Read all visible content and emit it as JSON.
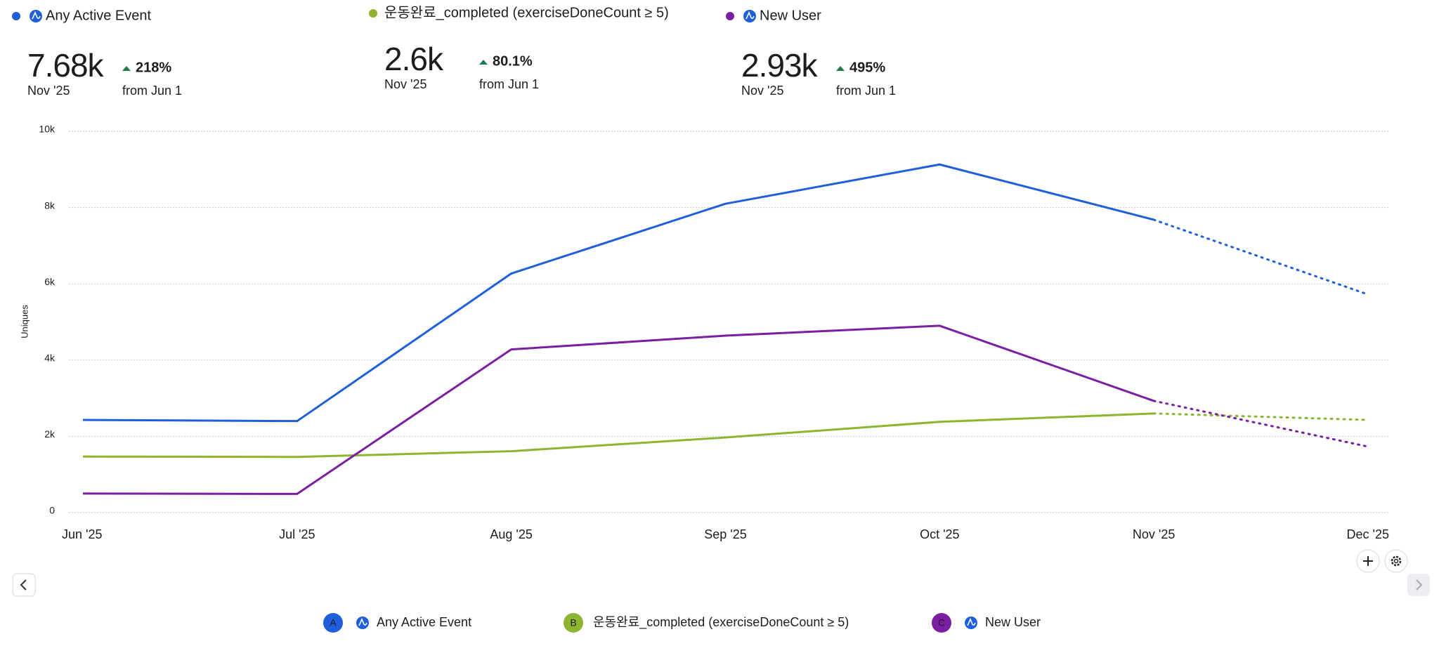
{
  "chart_data": {
    "type": "line",
    "y_label": "Uniques",
    "categories": [
      "Jun '25",
      "Jul '25",
      "Aug '25",
      "Sep '25",
      "Oct '25",
      "Nov '25",
      "Dec '25"
    ],
    "series": [
      {
        "name": "Any Active Event",
        "letter": "A",
        "color": "#1f5fdb",
        "values": [
          2430,
          2400,
          6270,
          8100,
          9130,
          7680,
          5720
        ]
      },
      {
        "name": "운동완료_completed (exerciseDoneCount ≥ 5)",
        "letter": "B",
        "color": "#8db52f",
        "values": [
          1470,
          1460,
          1610,
          1970,
          2380,
          2600,
          2430
        ]
      },
      {
        "name": "New User",
        "letter": "C",
        "color": "#7b1fa2",
        "values": [
          500,
          490,
          4280,
          4640,
          4900,
          2930,
          1730
        ]
      }
    ],
    "dotted_last_segment": true,
    "ylim": [
      0,
      10000
    ],
    "yticks": [
      0,
      {
        "value": 2000,
        "label": "2k"
      },
      {
        "value": 4000,
        "label": "4k"
      },
      {
        "value": 6000,
        "label": "6k"
      },
      {
        "value": 8000,
        "label": "8k"
      },
      {
        "value": 10000,
        "label": "10k"
      }
    ],
    "grid": true,
    "summary": [
      {
        "value": "7.68k",
        "period": "Nov '25",
        "change": "218%",
        "change_note": "from Jun 1"
      },
      {
        "value": "2.6k",
        "period": "Nov '25",
        "change": "80.1%",
        "change_note": "from Jun 1"
      },
      {
        "value": "2.93k",
        "period": "Nov '25",
        "change": "495%",
        "change_note": "from Jun 1"
      }
    ]
  }
}
